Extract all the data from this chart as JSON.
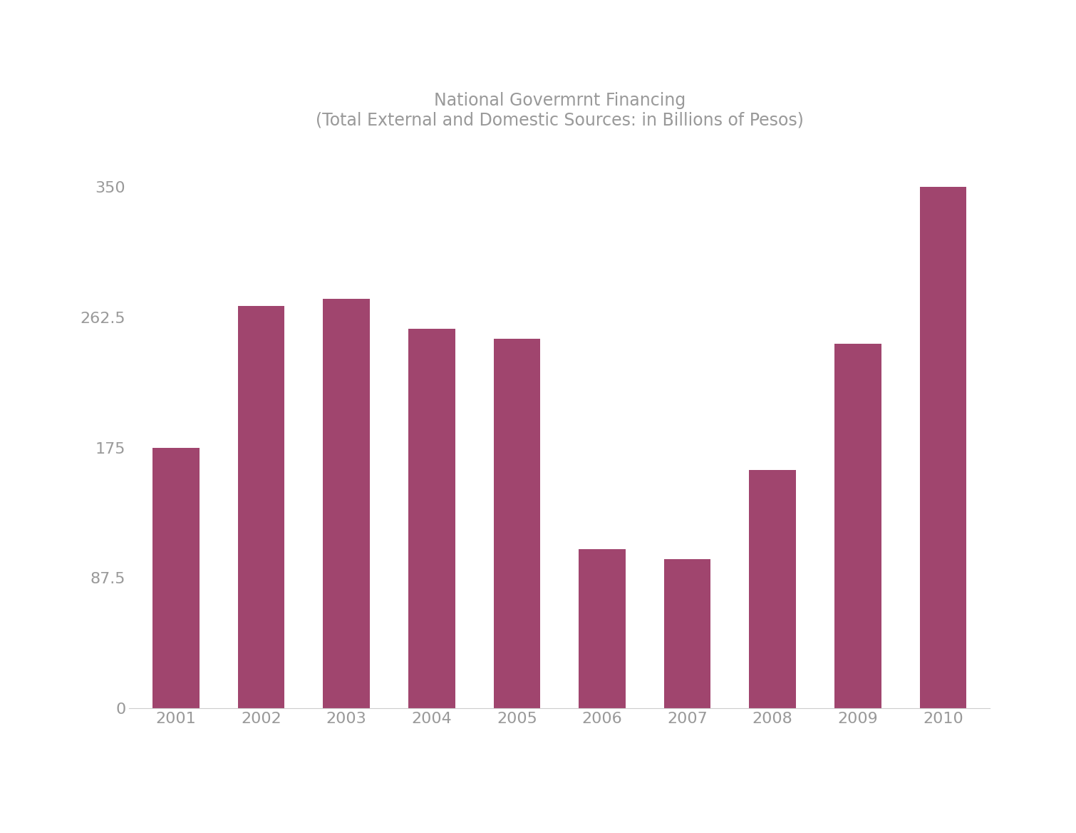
{
  "title_line1": "National Govermrnt Financing",
  "title_line2": "(Total External and Domestic Sources: in Billions of Pesos)",
  "categories": [
    "2001",
    "2002",
    "2003",
    "2004",
    "2005",
    "2006",
    "2007",
    "2008",
    "2009",
    "2010"
  ],
  "values": [
    175,
    270,
    275,
    255,
    248,
    107,
    100,
    160,
    245,
    350
  ],
  "bar_color": "#a0456e",
  "yticks": [
    0,
    87.5,
    175,
    262.5,
    350
  ],
  "ytick_labels": [
    "0",
    "87.5",
    "175",
    "262.5",
    "350"
  ],
  "ylim": [
    0,
    375
  ],
  "background_color": "#ffffff",
  "title_color": "#999999",
  "tick_color": "#999999",
  "spine_color": "#cccccc",
  "title_fontsize": 17,
  "tick_fontsize": 16,
  "xtick_fontsize": 16
}
